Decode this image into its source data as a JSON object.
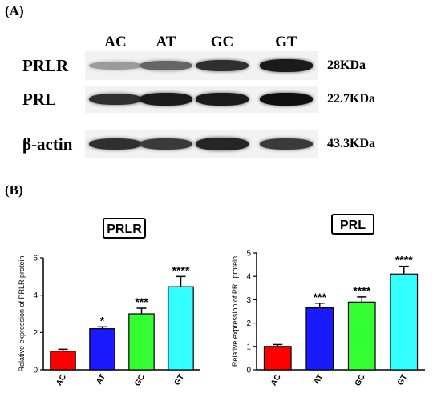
{
  "panel_a": {
    "label": "(A)",
    "lanes": [
      "AC",
      "AT",
      "GC",
      "GT"
    ],
    "rows": [
      {
        "name": "PRLR",
        "size": "28KDa",
        "intensity": [
          0.35,
          0.6,
          0.85,
          0.95
        ]
      },
      {
        "name": "PRL",
        "size": "22.7KDa",
        "intensity": [
          0.85,
          0.95,
          0.95,
          1.0
        ]
      },
      {
        "name": "β-actin",
        "size": "43.3KDa",
        "intensity": [
          0.85,
          0.8,
          0.9,
          0.8
        ]
      }
    ]
  },
  "panel_b": {
    "label": "(B)"
  },
  "chart_data": [
    {
      "type": "bar",
      "title": "PRLR",
      "ylabel": "Relative expression of PRLR protein",
      "categories": [
        "AC",
        "AT",
        "GC",
        "GT"
      ],
      "values": [
        1.0,
        2.2,
        3.0,
        4.45
      ],
      "errors": [
        0.1,
        0.1,
        0.3,
        0.55
      ],
      "significance": [
        "",
        "*",
        "***",
        "****"
      ],
      "colors": [
        "#ff0000",
        "#1a1aff",
        "#33ff33",
        "#33ffff"
      ],
      "ylim": [
        0,
        6
      ],
      "yticks": [
        0,
        2,
        4,
        6
      ]
    },
    {
      "type": "bar",
      "title": "PRL",
      "ylabel": "Relative expression of PRL protein",
      "categories": [
        "AC",
        "AT",
        "GC",
        "GT"
      ],
      "values": [
        1.0,
        2.65,
        2.9,
        4.1
      ],
      "errors": [
        0.08,
        0.2,
        0.22,
        0.33
      ],
      "significance": [
        "",
        "***",
        "****",
        "****"
      ],
      "colors": [
        "#ff0000",
        "#1a1aff",
        "#33ff33",
        "#33ffff"
      ],
      "ylim": [
        0,
        5
      ],
      "yticks": [
        0,
        1,
        2,
        3,
        4,
        5
      ]
    }
  ]
}
